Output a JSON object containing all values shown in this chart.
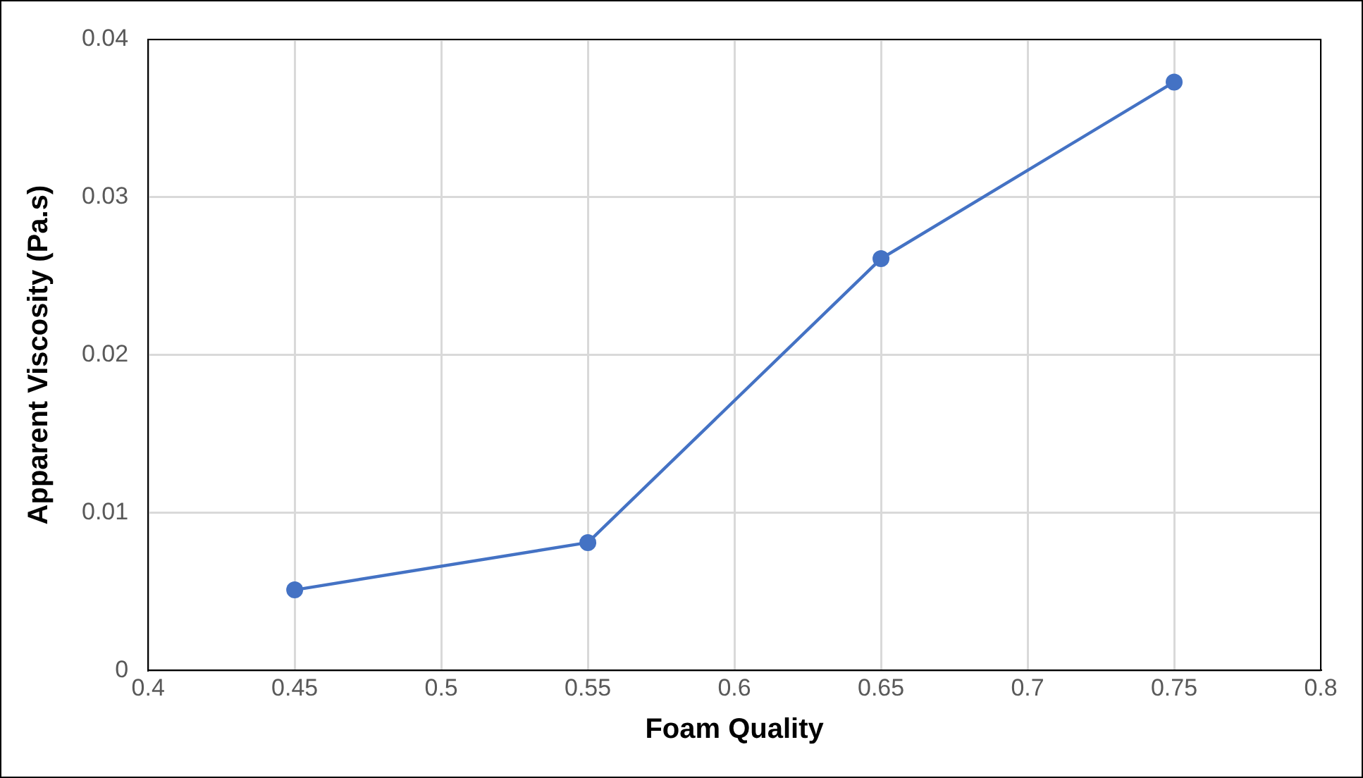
{
  "chart_data": {
    "type": "line",
    "xlabel": "Foam Quality",
    "ylabel": "Apparent Viscosity (Pa.s)",
    "series": [
      {
        "color": "#4472c4",
        "x": [
          0.45,
          0.55,
          0.65,
          0.75
        ],
        "values": [
          0.0051,
          0.0081,
          0.0261,
          0.0373
        ]
      }
    ],
    "xlim": [
      0.4,
      0.8
    ],
    "xticks": [
      0.4,
      0.45,
      0.5,
      0.55,
      0.6,
      0.65,
      0.7,
      0.75,
      0.8
    ],
    "ylim": [
      0,
      0.04
    ],
    "yticks": [
      0,
      0.01,
      0.02,
      0.03,
      0.04
    ],
    "grid": true,
    "marker": "circle",
    "line_style": "solid",
    "legend": false
  }
}
